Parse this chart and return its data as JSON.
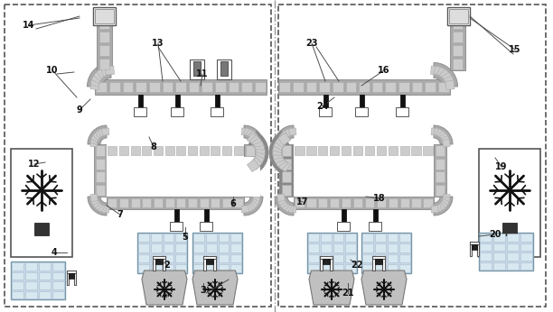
{
  "bg": "#ffffff",
  "gray_belt": "#aaaaaa",
  "gray_dark": "#888888",
  "gray_light": "#cccccc",
  "gray_lighter": "#dddddd",
  "item_fill": "#d0d0d0",
  "item_border": "#999999",
  "black": "#111111",
  "white": "#ffffff",
  "border_dash": "#555555",
  "line_color": "#444444",
  "panel_divider": "#888888"
}
